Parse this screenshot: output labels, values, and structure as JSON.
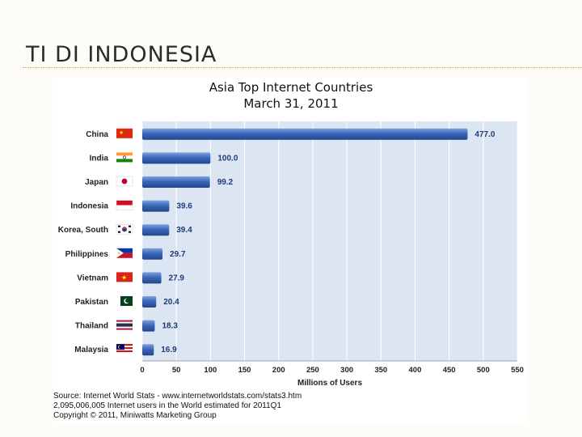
{
  "slide": {
    "title": "TI DI INDONESIA"
  },
  "chart_data": {
    "type": "bar",
    "orientation": "horizontal",
    "title": "Asia Top Internet Countries",
    "subtitle": "March 31, 2011",
    "categories": [
      "China",
      "India",
      "Japan",
      "Indonesia",
      "Korea, South",
      "Philippines",
      "Vietnam",
      "Pakistan",
      "Thailand",
      "Malaysia"
    ],
    "values": [
      477.0,
      100.0,
      99.2,
      39.6,
      39.4,
      29.7,
      27.9,
      20.4,
      18.3,
      16.9
    ],
    "value_labels": [
      "477.0",
      "100.0",
      "99.2",
      "39.6",
      "39.4",
      "29.7",
      "27.9",
      "20.4",
      "18.3",
      "16.9"
    ],
    "xlabel": "Millions of Users",
    "ylabel": "",
    "xlim": [
      0,
      550
    ],
    "xticks": [
      0,
      50,
      100,
      150,
      200,
      250,
      300,
      350,
      400,
      450,
      500,
      550
    ],
    "grid": true,
    "legend": "none",
    "flag_icons": [
      "china-flag-icon",
      "india-flag-icon",
      "japan-flag-icon",
      "indonesia-flag-icon",
      "korea-flag-icon",
      "philippines-flag-icon",
      "vietnam-flag-icon",
      "pakistan-flag-icon",
      "thailand-flag-icon",
      "malaysia-flag-icon"
    ],
    "colors": {
      "bar": "#3a67b8",
      "plot_background": "#dce6f2",
      "grid": "#ffffff"
    }
  },
  "source": {
    "line1": "Source: Internet World Stats - www.internetworldstats.com/stats3.htm",
    "line2": "2,095,006,005 Internet users in the World estimated for 2011Q1",
    "line3": "Copyright © 2011, Miniwatts Marketing Group"
  }
}
